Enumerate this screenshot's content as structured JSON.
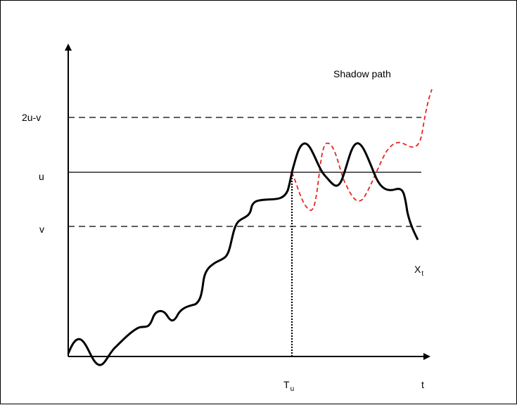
{
  "diagram": {
    "labels": {
      "level_2u_v": "2u-v",
      "level_u": "u",
      "level_v": "v",
      "shadow_path": "Shadow path",
      "process": "X",
      "process_sub": "t",
      "hitting_time": "T",
      "hitting_time_sub": "u",
      "time_axis": "t"
    },
    "colors": {
      "path": "#000000",
      "shadow": "#e8251f",
      "axes": "#000000"
    }
  }
}
